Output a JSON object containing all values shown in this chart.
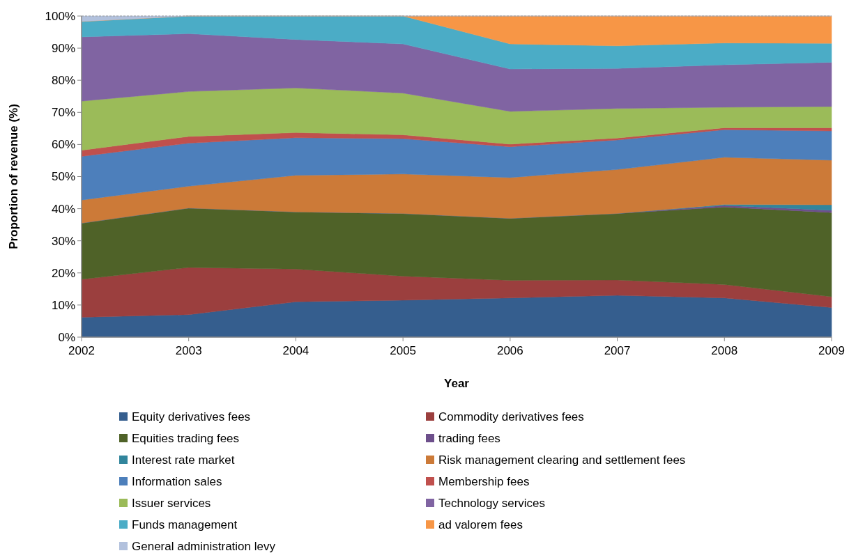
{
  "chart_data": {
    "type": "area",
    "stacked": true,
    "xlabel": "Year",
    "ylabel": "Proportion of revenue (%)",
    "x": [
      2002,
      2003,
      2004,
      2005,
      2006,
      2007,
      2008,
      2009
    ],
    "xlim": [
      2002,
      2009
    ],
    "xticks": [
      2002,
      2003,
      2004,
      2005,
      2006,
      2007,
      2008,
      2009
    ],
    "ylim": [
      0,
      100
    ],
    "yticks": [
      {
        "value": 0,
        "label": "0%"
      },
      {
        "value": 10,
        "label": "10%"
      },
      {
        "value": 20,
        "label": "20%"
      },
      {
        "value": 30,
        "label": "30%"
      },
      {
        "value": 40,
        "label": "40%"
      },
      {
        "value": 50,
        "label": "50%"
      },
      {
        "value": 60,
        "label": "60%"
      },
      {
        "value": 70,
        "label": "70%"
      },
      {
        "value": 80,
        "label": "80%"
      },
      {
        "value": 90,
        "label": "90%"
      },
      {
        "value": 100,
        "label": "100%"
      }
    ],
    "legend": "bottom",
    "series": [
      {
        "name": "Equity derivatives fees",
        "color": "#355e8e",
        "values": [
          6.2,
          7,
          11,
          11.5,
          12.2,
          13,
          12.2,
          9.2
        ]
      },
      {
        "name": "Commodity derivatives fees",
        "color": "#9b3f3e",
        "values": [
          11.8,
          14.7,
          10.2,
          7.5,
          5.5,
          4.8,
          4.2,
          3.4
        ]
      },
      {
        "name": "Equities trading fees",
        "color": "#4f6228",
        "values": [
          17.5,
          18.5,
          17.8,
          19.5,
          19.3,
          20.7,
          24.1,
          26.2
        ]
      },
      {
        "name": "trading fees",
        "color": "#6d4f8b",
        "values": [
          0,
          0,
          0,
          0,
          0,
          0,
          0.5,
          0.7
        ]
      },
      {
        "name": "Interest rate market",
        "color": "#31859c",
        "values": [
          0,
          0,
          0,
          0,
          0,
          0,
          0.3,
          1.7
        ]
      },
      {
        "name": "Risk management clearing and settlement fees",
        "color": "#cc7a38",
        "values": [
          7.2,
          6.8,
          11.4,
          12.3,
          12.7,
          13.7,
          14.7,
          13.9
        ]
      },
      {
        "name": "Information sales",
        "color": "#4d7fbb",
        "values": [
          13.6,
          13.4,
          11.7,
          11,
          9.6,
          9.2,
          8.6,
          9.1
        ]
      },
      {
        "name": "Membership fees",
        "color": "#c0504d",
        "values": [
          1.9,
          2.1,
          1.6,
          1.2,
          0.8,
          0.6,
          0.6,
          1
        ]
      },
      {
        "name": "Issuer services",
        "color": "#9bbb59",
        "values": [
          15.3,
          14,
          13.9,
          13,
          10.2,
          9.2,
          6.4,
          6.6
        ]
      },
      {
        "name": "Technology services",
        "color": "#8064a2",
        "values": [
          20,
          18,
          15.1,
          15.3,
          13.2,
          12.5,
          13.2,
          13.8
        ]
      },
      {
        "name": "Funds management",
        "color": "#4bacc6",
        "values": [
          4.8,
          5.5,
          7.3,
          8.7,
          7.8,
          7,
          6.8,
          5.9
        ]
      },
      {
        "name": "ad valorem fees",
        "color": "#f79646",
        "values": [
          0,
          0,
          0,
          0,
          8.7,
          9.3,
          8.4,
          8.5
        ]
      },
      {
        "name": "General administration levy",
        "color": "#b2c1dd",
        "values": [
          1.7,
          0,
          0,
          0,
          0,
          0,
          0,
          0
        ]
      }
    ]
  }
}
